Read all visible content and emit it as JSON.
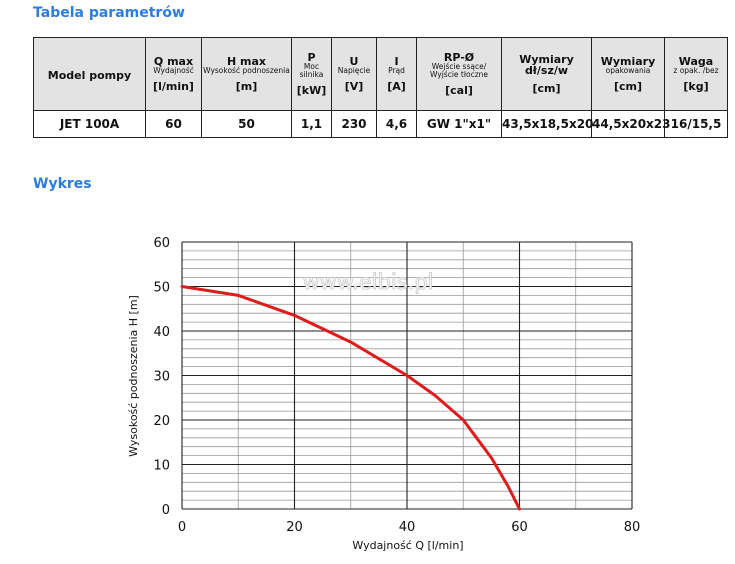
{
  "colors": {
    "title": "#2a7de1",
    "grid_major": "#222222",
    "grid_minor": "#9a9a9a",
    "curve": "#e01b1b",
    "header_bg": "#e3e3e3"
  },
  "page": {
    "table_title": "Tabela parametrów",
    "chart_title": "Wykres",
    "watermark": "www.elbis.pl"
  },
  "table": {
    "headers": [
      {
        "main": "Model pompy",
        "sub": "",
        "unit": ""
      },
      {
        "main": "Q max",
        "sub": "Wydajność",
        "unit": "[l/min]"
      },
      {
        "main": "H max",
        "sub": "Wysokość podnoszenia",
        "unit": "[m]"
      },
      {
        "main": "P",
        "sub": "Moc silnika",
        "unit": "[kW]"
      },
      {
        "main": "U",
        "sub": "Napięcie",
        "unit": "[V]"
      },
      {
        "main": "I",
        "sub": "Prąd",
        "unit": "[A]"
      },
      {
        "main": "RP-Ø",
        "sub": "Wejście ssące/ Wyjście tłoczne",
        "unit": "[cal]"
      },
      {
        "main": "Wymiary",
        "sub": "dł/sz/w",
        "unit": "[cm]"
      },
      {
        "main": "Wymiary",
        "sub": "opakowania",
        "unit": "[cm]"
      },
      {
        "main": "Waga",
        "sub": "z opak. /bez",
        "unit": "[kg]"
      }
    ],
    "row": [
      "JET 100A",
      "60",
      "50",
      "1,1",
      "230",
      "4,6",
      "GW 1\"x1\"",
      "43,5x18,5x20",
      "44,5x20x23",
      "16/15,5"
    ]
  },
  "chart_data": {
    "type": "line",
    "xlabel": "Wydajność Q [l/min]",
    "ylabel": "Wysokość podnoszenia H [m]",
    "xlim": [
      0,
      80
    ],
    "ylim": [
      0,
      60
    ],
    "xticks": [
      "0",
      "20",
      "40",
      "60",
      "80"
    ],
    "yticks": [
      "0",
      "10",
      "20",
      "30",
      "40",
      "50",
      "60"
    ],
    "grid": true,
    "series": [
      {
        "x": [
          0,
          10,
          20,
          30,
          40,
          45,
          50,
          55,
          58,
          60
        ],
        "y": [
          50,
          48,
          43.5,
          37.5,
          30,
          25.5,
          20,
          11.5,
          5,
          0
        ]
      }
    ]
  }
}
